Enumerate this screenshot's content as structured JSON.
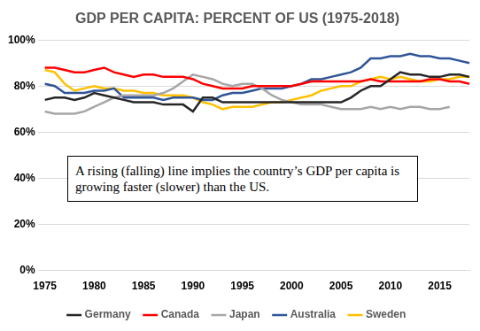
{
  "chart_data": {
    "type": "line",
    "title": "GDP PER CAPITA: PERCENT OF US (1975-2018)",
    "annotation": "A rising (falling) line implies the country’s GDP per capita is growing faster (slower) than the US.",
    "categories": [
      "1975",
      null,
      null,
      null,
      null,
      "1980",
      null,
      null,
      null,
      null,
      "1985",
      null,
      null,
      null,
      null,
      "1990",
      null,
      null,
      null,
      null,
      "1995",
      null,
      null,
      null,
      null,
      "2000",
      null,
      null,
      null,
      null,
      "2005",
      null,
      null,
      null,
      null,
      "2010",
      null,
      null,
      null,
      null,
      "2015",
      null,
      null,
      null
    ],
    "series": [
      {
        "name": "Germany",
        "color": "#262626",
        "values": [
          74,
          75,
          75,
          74,
          75,
          77,
          76,
          75,
          74,
          73,
          73,
          73,
          72,
          72,
          72,
          69,
          75,
          75,
          73,
          73,
          73,
          73,
          73,
          73,
          73,
          73,
          73,
          73,
          73,
          73,
          73,
          75,
          78,
          80,
          80,
          83,
          86,
          85,
          85,
          84,
          84,
          85,
          85,
          84
        ]
      },
      {
        "name": "Canada",
        "color": "#ff0000",
        "values": [
          88,
          88,
          87,
          86,
          86,
          87,
          88,
          86,
          85,
          84,
          85,
          85,
          84,
          84,
          84,
          83,
          81,
          80,
          79,
          79,
          79,
          80,
          80,
          80,
          80,
          80,
          81,
          82,
          82,
          82,
          82,
          82,
          82,
          83,
          82,
          82,
          82,
          82,
          82,
          83,
          83,
          82,
          82,
          81
        ]
      },
      {
        "name": "Japan",
        "color": "#a6a6a6",
        "values": [
          69,
          68,
          68,
          68,
          69,
          71,
          73,
          75,
          76,
          76,
          76,
          76,
          77,
          79,
          82,
          85,
          84,
          83,
          81,
          80,
          81,
          81,
          79,
          76,
          74,
          73,
          72,
          72,
          72,
          71,
          70,
          70,
          70,
          71,
          70,
          71,
          70,
          71,
          71,
          70,
          70,
          71,
          null,
          null
        ]
      },
      {
        "name": "Australia",
        "color": "#2f5597",
        "values": [
          81,
          80,
          77,
          77,
          77,
          78,
          78,
          79,
          75,
          75,
          75,
          75,
          74,
          75,
          75,
          75,
          74,
          74,
          76,
          77,
          77,
          78,
          79,
          79,
          79,
          80,
          81,
          83,
          83,
          84,
          85,
          86,
          88,
          92,
          92,
          93,
          93,
          94,
          93,
          93,
          92,
          92,
          91,
          90
        ]
      },
      {
        "name": "Sweden",
        "color": "#ffc000",
        "values": [
          87,
          86,
          81,
          78,
          79,
          80,
          79,
          79,
          78,
          78,
          77,
          77,
          76,
          76,
          76,
          75,
          73,
          72,
          70,
          71,
          71,
          71,
          72,
          73,
          73,
          74,
          75,
          76,
          78,
          79,
          80,
          80,
          82,
          83,
          84,
          83,
          84,
          83,
          82,
          82,
          83,
          83,
          84,
          84
        ]
      }
    ],
    "ylim": [
      0,
      100
    ],
    "yticks": [
      {
        "value": 0,
        "label": "0%"
      },
      {
        "value": 20,
        "label": "20%"
      },
      {
        "value": 40,
        "label": "40%"
      },
      {
        "value": 60,
        "label": "60%"
      },
      {
        "value": 80,
        "label": "80%"
      },
      {
        "value": 100,
        "label": "100%"
      }
    ],
    "grid": true,
    "legend": "bottom"
  }
}
